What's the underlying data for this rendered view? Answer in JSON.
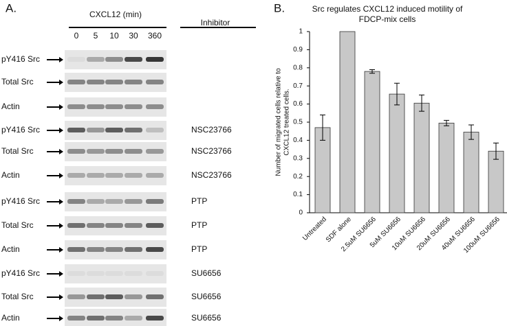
{
  "panel_a": {
    "label": "A.",
    "header": "CXCL12 (min)",
    "inhibitor_header": "Inhibitor",
    "times": [
      "0",
      "5",
      "10",
      "30",
      "360"
    ],
    "rows": [
      {
        "label": "pY416 Src"
      },
      {
        "label": "Total Src"
      },
      {
        "label": "Actin"
      },
      {
        "label": "pY416 Src",
        "inhibitor": "NSC23766"
      },
      {
        "label": "Total Src",
        "inhibitor": "NSC23766"
      },
      {
        "label": "Actin",
        "inhibitor": "NSC23766"
      },
      {
        "label": "pY416 Src",
        "inhibitor": "PTP"
      },
      {
        "label": "Total Src",
        "inhibitor": "PTP"
      },
      {
        "label": "Actin",
        "inhibitor": "PTP"
      },
      {
        "label": "pY416 Src",
        "inhibitor": "SU6656"
      },
      {
        "label": "Total Src",
        "inhibitor": "SU6656"
      },
      {
        "label": "Actin",
        "inhibitor": "SU6656"
      }
    ]
  },
  "chart_data": {
    "type": "bar",
    "panel_label": "B.",
    "title": [
      "Src regulates CXCL12 induced motility of",
      "FDCP-mix cells"
    ],
    "y_label": [
      "Number of migrated cells relative to",
      "CXCL12  treated cells."
    ],
    "categories": [
      "Untreated",
      "SDF alone",
      "2.5uM  SU6656",
      "5uM  SU6656",
      "10uM  SU6656",
      "20uM  SU6656",
      "40uM  SU6656",
      "100uM  SU6656"
    ],
    "values": [
      0.47,
      1,
      0.78,
      0.655,
      0.605,
      0.495,
      0.445,
      0.34
    ],
    "errors": [
      0.07,
      0,
      0.01,
      0.06,
      0.045,
      0.015,
      0.04,
      0.045
    ],
    "color": "#c8c8c8",
    "ylim": [
      0,
      1
    ],
    "yticks": [
      0,
      0.1,
      0.2,
      0.3,
      0.4,
      0.5,
      0.6,
      0.7,
      0.8,
      0.9,
      1
    ]
  }
}
